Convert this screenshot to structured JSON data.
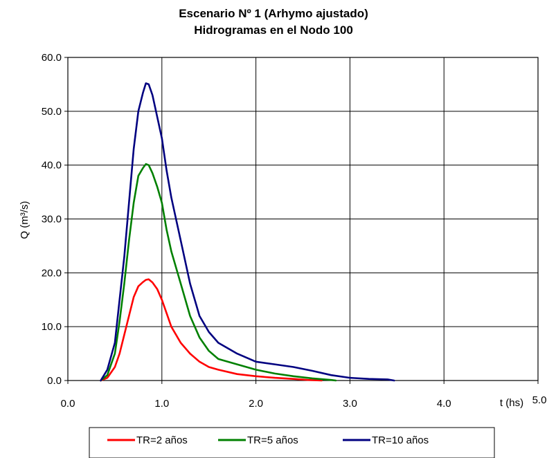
{
  "chart_data": {
    "type": "line",
    "title": "Escenario Nº  1 (Arhymo ajustado)",
    "subtitle": "Hidrogramas en el Nodo 100",
    "xlabel": "t (hs)",
    "ylabel": "Q (m³/s)",
    "xlim": [
      0,
      5
    ],
    "ylim": [
      0,
      60
    ],
    "x_ticks": [
      "0.0",
      "1.0",
      "2.0",
      "3.0",
      "4.0",
      "5.0"
    ],
    "y_ticks": [
      "0.0",
      "10.0",
      "20.0",
      "30.0",
      "40.0",
      "50.0",
      "60.0"
    ],
    "grid": true,
    "legend_position": "bottom",
    "series": [
      {
        "name": "TR=2 años",
        "color": "#ff0000",
        "x": [
          0.35,
          0.42,
          0.5,
          0.55,
          0.6,
          0.65,
          0.7,
          0.75,
          0.8,
          0.83,
          0.86,
          0.9,
          0.95,
          1.0,
          1.05,
          1.1,
          1.2,
          1.3,
          1.4,
          1.5,
          1.6,
          1.8,
          2.0,
          2.2,
          2.4,
          2.55,
          2.7
        ],
        "y": [
          0,
          0.5,
          2.5,
          5,
          8.5,
          12,
          15.5,
          17.5,
          18.3,
          18.7,
          18.8,
          18.2,
          17,
          15,
          12.5,
          10,
          7,
          5,
          3.5,
          2.5,
          2.0,
          1.2,
          0.8,
          0.5,
          0.3,
          0.1,
          0
        ]
      },
      {
        "name": "TR=5 años",
        "color": "#008000",
        "x": [
          0.35,
          0.42,
          0.5,
          0.55,
          0.6,
          0.65,
          0.7,
          0.75,
          0.8,
          0.83,
          0.86,
          0.9,
          0.95,
          1.0,
          1.05,
          1.1,
          1.2,
          1.3,
          1.4,
          1.5,
          1.6,
          1.8,
          2.0,
          2.2,
          2.4,
          2.6,
          2.8,
          2.85
        ],
        "y": [
          0,
          1,
          5,
          11,
          18,
          26,
          33,
          38,
          39.5,
          40.2,
          40.0,
          38.5,
          36,
          33,
          28,
          24,
          18,
          12,
          8,
          5.5,
          4.0,
          3.0,
          2.0,
          1.3,
          0.8,
          0.4,
          0.1,
          0
        ]
      },
      {
        "name": "TR=10 años",
        "color": "#000080",
        "x": [
          0.35,
          0.42,
          0.5,
          0.55,
          0.6,
          0.65,
          0.7,
          0.75,
          0.8,
          0.83,
          0.86,
          0.9,
          0.95,
          1.0,
          1.05,
          1.1,
          1.2,
          1.3,
          1.4,
          1.5,
          1.6,
          1.8,
          2.0,
          2.2,
          2.4,
          2.6,
          2.8,
          3.0,
          3.2,
          3.4,
          3.47
        ],
        "y": [
          0,
          2,
          7,
          15,
          23,
          33,
          43,
          50,
          53.5,
          55.2,
          55.0,
          53,
          49,
          45,
          39,
          34,
          26,
          18,
          12,
          9,
          7,
          5,
          3.5,
          3,
          2.5,
          1.8,
          1.0,
          0.5,
          0.3,
          0.2,
          0
        ]
      }
    ]
  }
}
